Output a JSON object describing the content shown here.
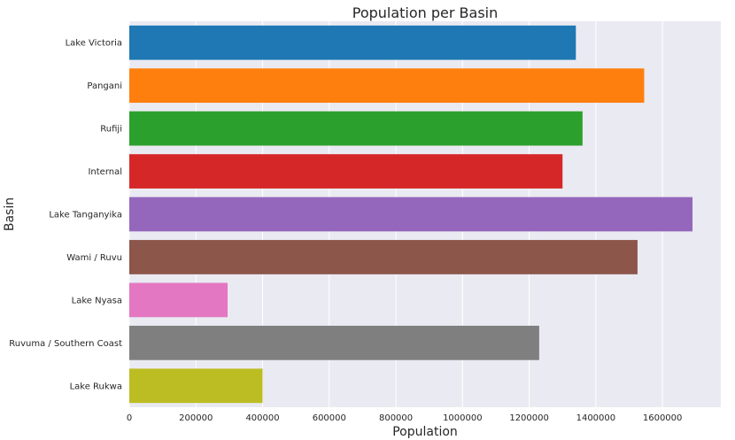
{
  "chart_data": {
    "type": "bar",
    "orientation": "horizontal",
    "title": "Population per Basin",
    "xlabel": "Population",
    "ylabel": "Basin",
    "categories": [
      "Lake Victoria",
      "Pangani",
      "Rufiji",
      "Internal",
      "Lake Tanganyika",
      "Wami / Ruvu",
      "Lake Nyasa",
      "Ruvuma / Southern Coast",
      "Lake Rukwa"
    ],
    "values": [
      1340000,
      1545000,
      1360000,
      1300000,
      1690000,
      1525000,
      295000,
      1230000,
      400000
    ],
    "colors": [
      "#1f77b4",
      "#ff7f0e",
      "#2ca02c",
      "#d62728",
      "#9467bd",
      "#8c564b",
      "#e377c2",
      "#7f7f7f",
      "#bcbd22"
    ],
    "xlim": [
      0,
      1775000
    ],
    "xticks": [
      0,
      200000,
      400000,
      600000,
      800000,
      1000000,
      1200000,
      1400000,
      1600000
    ],
    "xtick_labels": [
      "0",
      "200000",
      "400000",
      "600000",
      "800000",
      "1000000",
      "1200000",
      "1400000",
      "1600000"
    ],
    "grid": true,
    "legend": "none",
    "background": "#eaeaf2"
  }
}
